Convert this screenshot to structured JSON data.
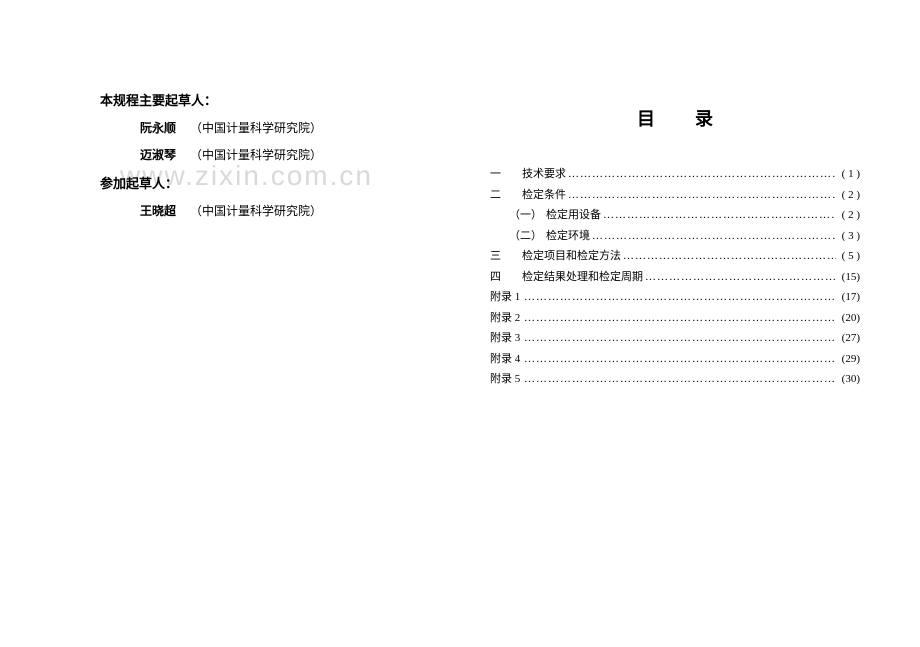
{
  "watermark": "www.zixin.com.cn",
  "left": {
    "section1_title": "本规程主要起草人：",
    "authors1": [
      {
        "name": "阮永顺",
        "affil": "（中国计量科学研究院）"
      },
      {
        "name": "迈淑琴",
        "affil": "（中国计量科学研究院）"
      }
    ],
    "section2_title": "参加起草人：",
    "authors2": [
      {
        "name": "王晓超",
        "affil": "（中国计量科学研究院）"
      }
    ]
  },
  "right": {
    "title": "目录",
    "items": [
      {
        "num": "一",
        "indent": false,
        "label": "技术要求",
        "page": "( 1 )"
      },
      {
        "num": "二",
        "indent": false,
        "label": "检定条件",
        "page": "( 2 )"
      },
      {
        "num": "（一）",
        "indent": true,
        "label": "检定用设备",
        "page": "( 2 )"
      },
      {
        "num": "（二）",
        "indent": true,
        "label": "检定环境",
        "page": "( 3 )"
      },
      {
        "num": "三",
        "indent": false,
        "label": "检定项目和检定方法",
        "page": "( 5 )"
      },
      {
        "num": "四",
        "indent": false,
        "label": "检定结果处理和检定周期",
        "page": "(15)"
      },
      {
        "num": "附录 1",
        "indent": false,
        "label": "",
        "page": "(17)"
      },
      {
        "num": "附录 2",
        "indent": false,
        "label": "",
        "page": "(20)"
      },
      {
        "num": "附录 3",
        "indent": false,
        "label": "",
        "page": "(27)"
      },
      {
        "num": "附录 4",
        "indent": false,
        "label": "",
        "page": "(29)"
      },
      {
        "num": "附录 5",
        "indent": false,
        "label": "",
        "page": "(30)"
      }
    ]
  },
  "dots": "……………………………………………………………………………………"
}
